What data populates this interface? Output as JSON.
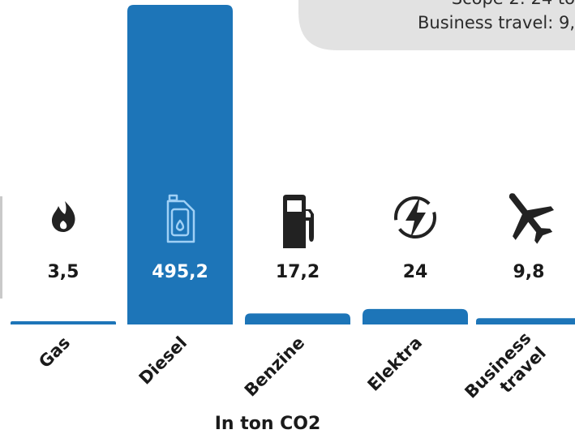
{
  "info_box": {
    "line1": "Scope 2: 24 to",
    "line2": "Business travel: 9,"
  },
  "chart_data": {
    "type": "bar",
    "ylabel": "In ton CO2",
    "categories": [
      "Gas",
      "Diesel",
      "Benzine",
      "Elektra",
      "Business travel"
    ],
    "category_lines": [
      [
        "Gas"
      ],
      [
        "Diesel"
      ],
      [
        "Benzine"
      ],
      [
        "Elektra"
      ],
      [
        "Business",
        "travel"
      ]
    ],
    "values": [
      3.5,
      495.2,
      17.2,
      24,
      9.8
    ],
    "value_labels": [
      "3,5",
      "495,2",
      "17,2",
      "24",
      "9,8"
    ],
    "icons": [
      "flame-icon",
      "jerrycan-icon",
      "fuel-pump-icon",
      "lightning-icon",
      "airplane-icon"
    ],
    "colors": {
      "bar": "#1d75b8",
      "highlight_label": "#ffffff",
      "label": "#1a1a1a"
    }
  }
}
